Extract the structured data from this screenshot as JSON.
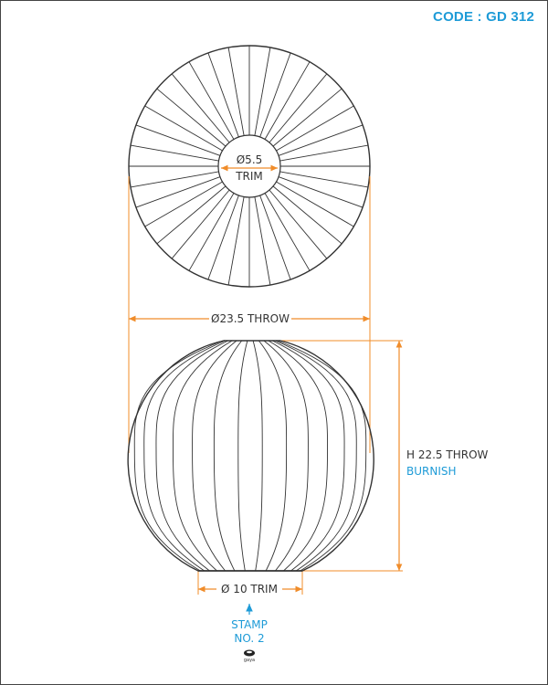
{
  "header": {
    "code": "CODE : GD 312"
  },
  "top_view": {
    "inner_diameter": "Ø5.5",
    "inner_label": "TRIM"
  },
  "dimensions": {
    "outer_diameter": "Ø23.5 THROW",
    "height": "H 22.5 THROW",
    "height_finish": "BURNISH",
    "base_diameter": "Ø 10 TRIM"
  },
  "stamp": {
    "line1": "STAMP",
    "line2": "NO. 2",
    "logo_text": "gaya"
  },
  "colors": {
    "dimension": "#f08c2a",
    "accent": "#1e9bd7",
    "stroke": "#333333"
  }
}
